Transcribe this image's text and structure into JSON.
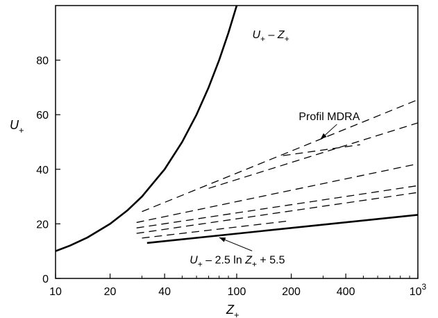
{
  "chart_data": {
    "type": "line",
    "xscale": "log",
    "xlim": [
      10,
      1000
    ],
    "ylim": [
      0,
      100
    ],
    "xlabel": "Z+",
    "ylabel": "U+",
    "grid": false,
    "x_ticks": [
      {
        "value": 10,
        "label": "10"
      },
      {
        "value": 20,
        "label": "20"
      },
      {
        "value": 40,
        "label": "40"
      },
      {
        "value": 100,
        "label": "100"
      },
      {
        "value": 200,
        "label": "200"
      },
      {
        "value": 400,
        "label": "400"
      },
      {
        "value": 1000,
        "label": "10",
        "sup": "3"
      }
    ],
    "y_ticks": [
      {
        "value": 0,
        "label": "0"
      },
      {
        "value": 20,
        "label": "20"
      },
      {
        "value": 40,
        "label": "40"
      },
      {
        "value": 60,
        "label": "60"
      },
      {
        "value": 80,
        "label": "80"
      }
    ],
    "series": [
      {
        "style": "solid",
        "x": [
          10,
          12,
          15,
          20,
          25,
          30,
          40,
          50,
          60,
          70,
          80,
          90,
          100
        ],
        "y": [
          10,
          12,
          15,
          20,
          25,
          30,
          40,
          50,
          60,
          70,
          80,
          90,
          100
        ]
      },
      {
        "style": "solid",
        "x": [
          32,
          1000
        ],
        "y": [
          13,
          23.3
        ]
      },
      {
        "style": "dashed",
        "x": [
          30,
          1000
        ],
        "y": [
          24.5,
          65.5
        ]
      },
      {
        "style": "dashed",
        "x": [
          70,
          1000
        ],
        "y": [
          33,
          57
        ]
      },
      {
        "style": "dashed",
        "x": [
          180,
          480
        ],
        "y": [
          45,
          49
        ]
      },
      {
        "style": "dashed",
        "x": [
          28,
          1000
        ],
        "y": [
          20.5,
          42
        ]
      },
      {
        "style": "dashed",
        "x": [
          28,
          1000
        ],
        "y": [
          18.5,
          34
        ]
      },
      {
        "style": "dashed",
        "x": [
          28,
          1000
        ],
        "y": [
          16.5,
          31.5
        ]
      },
      {
        "style": "dashed",
        "x": [
          30,
          190
        ],
        "y": [
          14.8,
          21
        ]
      }
    ],
    "annotations": [
      {
        "text_parts": [
          "U",
          "+",
          " – Z",
          "+"
        ],
        "x": 122,
        "y": 88
      },
      {
        "text": "Profil MDRA",
        "x": 220,
        "y": 58,
        "arrow_to": [
          290,
          51
        ]
      },
      {
        "text_parts": [
          "U",
          "+",
          " – 2.5 ln Z",
          "+",
          " + 5.5"
        ],
        "x": 55,
        "y": 5.5,
        "arrow_to": [
          80,
          15
        ]
      }
    ]
  }
}
